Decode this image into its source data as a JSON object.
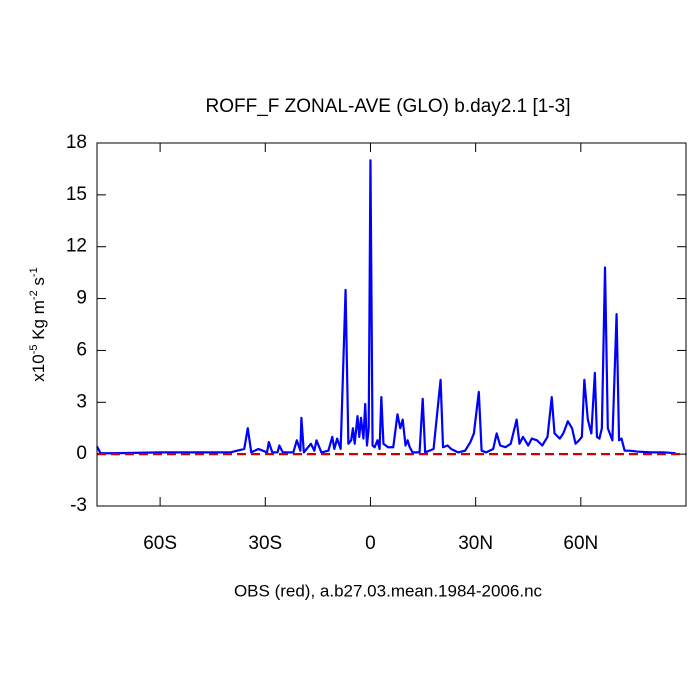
{
  "chart_data": {
    "type": "line",
    "title": "ROFF_F ZONAL-AVE (GLO) b.day2.1 [1-3]",
    "xlabel": "OBS (red), a.b27.03.mean.1984-2006.nc",
    "ylabel_parts": [
      {
        "text": "x10"
      },
      {
        "text": "-5",
        "sup": true
      },
      {
        "text": " Kg m"
      },
      {
        "text": "-2",
        "sup": true
      },
      {
        "text": " s"
      },
      {
        "text": "-1",
        "sup": true
      }
    ],
    "xlim": [
      -78,
      90
    ],
    "ylim": [
      -3,
      18
    ],
    "xticks": [
      {
        "value": -60,
        "label": "60S"
      },
      {
        "value": -30,
        "label": "30S"
      },
      0,
      {
        "value": 30,
        "label": "30N"
      },
      {
        "value": 60,
        "label": "60N"
      }
    ],
    "yticks": [
      -3,
      0,
      3,
      6,
      9,
      12,
      15,
      18
    ],
    "series": [
      {
        "name": "b.day2.1",
        "color": "#0000ff",
        "dashed": false,
        "x": [
          -78,
          -77,
          -74,
          -60,
          -50,
          -40,
          -36,
          -35,
          -34,
          -32,
          -29.5,
          -29,
          -28,
          -26.5,
          -26,
          -25,
          -22,
          -21,
          -20,
          -19.7,
          -19,
          -17,
          -16,
          -15.4,
          -14,
          -12,
          -10.9,
          -10.3,
          -9.5,
          -8.5,
          -7.1,
          -6.3,
          -5.5,
          -5,
          -4.5,
          -3.7,
          -3.2,
          -2.7,
          -2,
          -1.5,
          -1,
          -0.5,
          0,
          0.6,
          1.2,
          2,
          2.6,
          3.1,
          3.7,
          5,
          6.5,
          7.7,
          8.5,
          9.2,
          10,
          10.6,
          11.2,
          12,
          14,
          14.9,
          15.6,
          18,
          20,
          20.7,
          22,
          23,
          25,
          27,
          28.5,
          29.5,
          30.9,
          31.7,
          33,
          35,
          36,
          37,
          38.5,
          40,
          41.7,
          42.5,
          43.5,
          45,
          46,
          47.5,
          49,
          50.5,
          51.7,
          52.5,
          54,
          55,
          56.3,
          57.5,
          58.5,
          59.5,
          60.3,
          61,
          62,
          63,
          64,
          64.6,
          65.3,
          66,
          66.9,
          67.7,
          69,
          70.2,
          70.9,
          71.6,
          72.5,
          74,
          76,
          80,
          84,
          87
        ],
        "values": [
          0.45,
          0.05,
          0.05,
          0.1,
          0.1,
          0.1,
          0.3,
          1.5,
          0.1,
          0.3,
          0.1,
          0.7,
          0.1,
          0.1,
          0.5,
          0.1,
          0.1,
          0.8,
          0.2,
          2.1,
          0.1,
          0.6,
          0.2,
          0.8,
          0.1,
          0.2,
          1.0,
          0.3,
          0.9,
          0.3,
          9.5,
          0.6,
          0.8,
          1.5,
          0.6,
          2.2,
          1.0,
          2.1,
          0.9,
          2.9,
          0.5,
          1.5,
          17,
          0.5,
          0.4,
          0.8,
          0.3,
          3.3,
          0.6,
          0.4,
          0.4,
          2.3,
          1.5,
          2.0,
          0.5,
          0.8,
          0.4,
          0.1,
          0.1,
          3.2,
          0.1,
          0.3,
          4.3,
          0.4,
          0.5,
          0.3,
          0.1,
          0.2,
          0.7,
          1.2,
          3.6,
          0.2,
          0.1,
          0.3,
          1.2,
          0.5,
          0.4,
          0.6,
          2.0,
          0.6,
          1.0,
          0.5,
          0.9,
          0.8,
          0.5,
          1.0,
          3.3,
          1.2,
          0.9,
          1.2,
          1.9,
          1.5,
          0.6,
          0.8,
          1.0,
          4.3,
          2.0,
          1.2,
          4.7,
          1.0,
          0.9,
          1.5,
          10.8,
          1.5,
          0.8,
          8.1,
          0.8,
          0.9,
          0.2,
          0.2,
          0.15,
          0.1,
          0.1,
          0.05
        ]
      },
      {
        "name": "OBS",
        "color": "#cc0000",
        "dashed": true,
        "x": [
          -78,
          90
        ],
        "values": [
          0,
          0
        ]
      }
    ]
  }
}
